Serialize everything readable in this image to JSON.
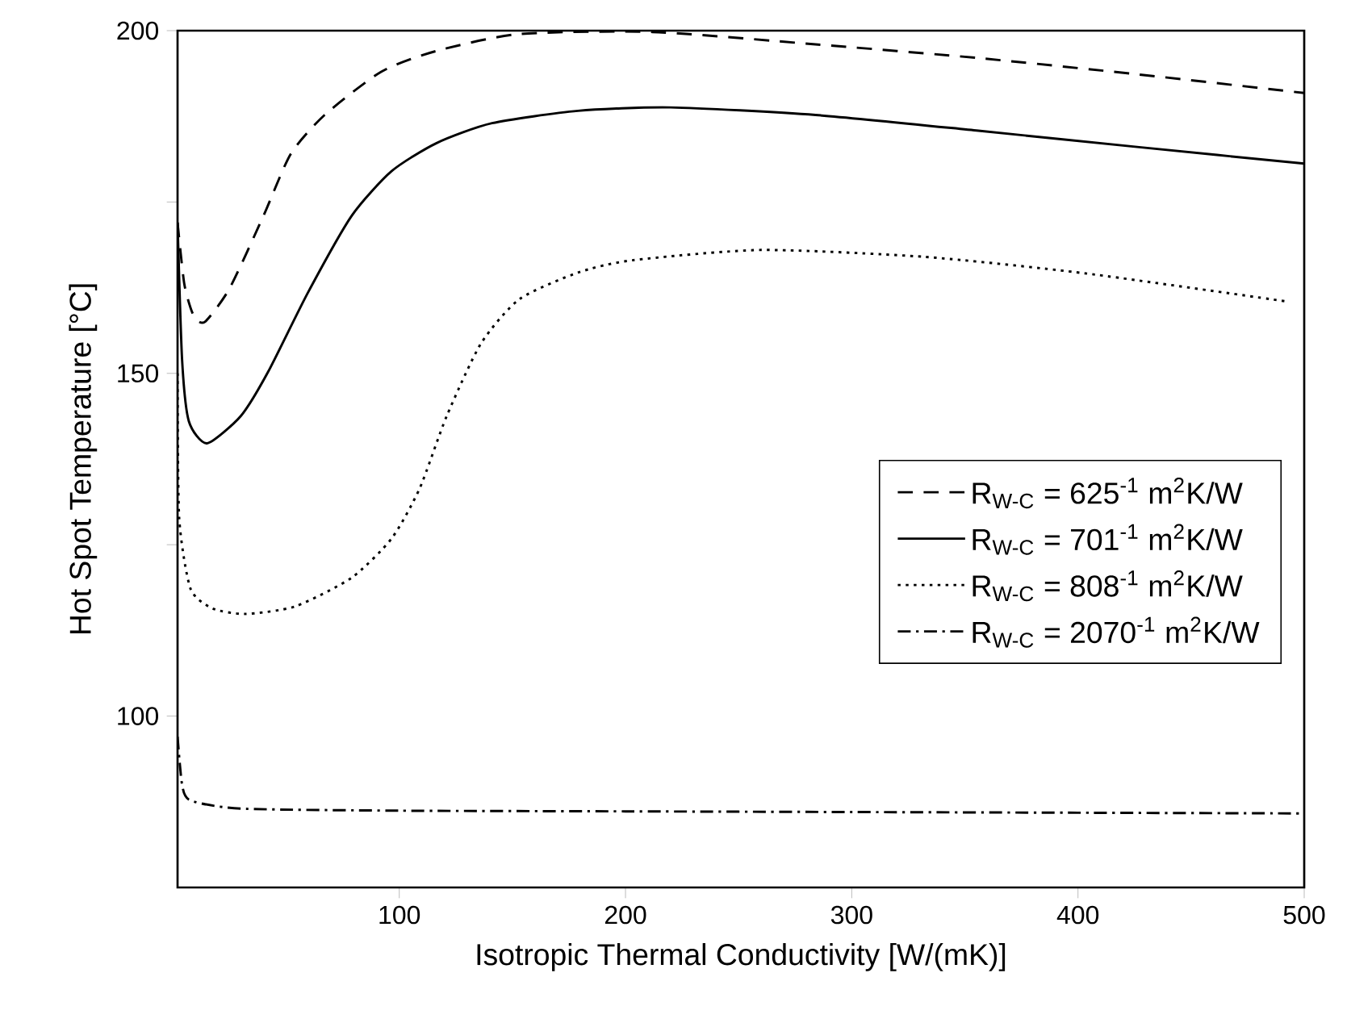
{
  "chart_data": {
    "type": "line",
    "xlabel": "Isotropic Thermal Conductivity [W/(mK)]",
    "ylabel": "Hot Spot Temperature [°C]",
    "xlim": [
      2,
      500
    ],
    "ylim": [
      75,
      200
    ],
    "xticks": [
      100,
      200,
      300,
      400,
      500
    ],
    "yticks": [
      {
        "value": 100,
        "label": "100"
      },
      {
        "value": 125,
        "label": null
      },
      {
        "value": 150,
        "label": "150"
      },
      {
        "value": 175,
        "label": null
      },
      {
        "value": 200,
        "label": "200"
      }
    ],
    "grid": false,
    "legend": "right",
    "marker": "none",
    "series": [
      {
        "name": "R$_{W-C}$ = 625$^{-1}$ m$^{2}$K/W",
        "color": "#000000",
        "line_style": "dashed",
        "x": [
          2,
          5,
          9,
          14,
          25,
          40,
          52,
          67,
          92,
          116,
          153,
          212,
          284,
          356,
          427,
          500
        ],
        "values": [
          172,
          163,
          158.5,
          157.5,
          162.4,
          173,
          182,
          187.7,
          194,
          197,
          199.5,
          199.8,
          198,
          196,
          193.6,
          190.9
        ]
      },
      {
        "name": "R$_{W-C}$ = 701$^{-1}$ m$^{2}$K/W",
        "color": "#000000",
        "line_style": "solid",
        "x": [
          2,
          4,
          7,
          15,
          30,
          42,
          59.5,
          79,
          96.6,
          116.5,
          141,
          179,
          220,
          284,
          356,
          427,
          500
        ],
        "values": [
          172,
          152,
          143,
          139.8,
          143.8,
          150.2,
          161.7,
          173,
          179.5,
          183.6,
          186.5,
          188.3,
          188.8,
          187.7,
          185.4,
          183,
          180.6
        ]
      },
      {
        "name": "R$_{W-C}$ = 808$^{-1}$ m$^{2}$K/W",
        "color": "#000000",
        "line_style": "dotted",
        "x": [
          2,
          2.7,
          7.7,
          17.5,
          32,
          54,
          79,
          96.6,
          109,
          121,
          136,
          153,
          179,
          203,
          260,
          332,
          403,
          492
        ],
        "values": [
          150,
          129,
          118.6,
          115.7,
          114.9,
          116,
          120.2,
          125.9,
          133.2,
          143.8,
          154.3,
          160.8,
          164.7,
          166.5,
          168,
          167,
          164.6,
          160.5
        ]
      },
      {
        "name": "R$_{W-C}$ = 2070$^{-1}$ m$^{2}$K/W",
        "color": "#000000",
        "line_style": "dashdotted",
        "x": [
          2,
          4,
          7.7,
          30,
          100,
          200,
          300,
          400,
          500
        ],
        "values": [
          97,
          90,
          87.7,
          86.5,
          86.2,
          86.1,
          86,
          85.9,
          85.8
        ]
      }
    ]
  }
}
